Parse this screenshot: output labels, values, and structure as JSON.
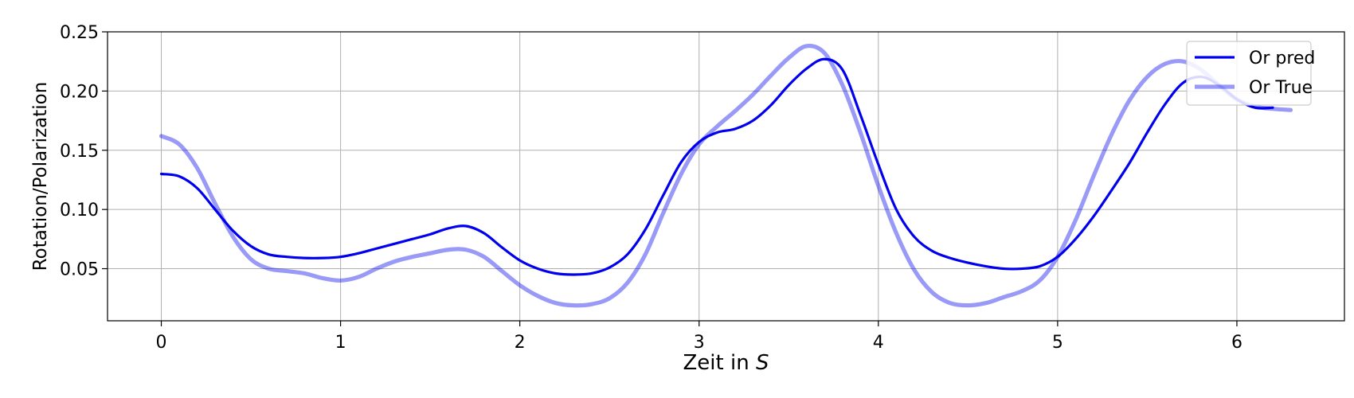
{
  "chart_data": {
    "type": "line",
    "xlabel": "Zeit in S",
    "xlabel_main": "Zeit in ",
    "xlabel_italic": "S",
    "ylabel": "Rotation/Polarization",
    "xlim": [
      -0.3,
      6.6
    ],
    "ylim": [
      0.006,
      0.25
    ],
    "xticks": [
      0,
      1,
      2,
      3,
      4,
      5,
      6
    ],
    "xtick_labels": [
      "0",
      "1",
      "2",
      "3",
      "4",
      "5",
      "6"
    ],
    "yticks": [
      0.05,
      0.1,
      0.15,
      0.2,
      0.25
    ],
    "ytick_labels": [
      "0.05",
      "0.10",
      "0.15",
      "0.20",
      "0.25"
    ],
    "grid": true,
    "legend_position": "top-right",
    "series": [
      {
        "name": "Or pred",
        "color": "#0000ee",
        "opacity": 1.0,
        "linewidth": "thin",
        "points": [
          [
            0,
            0.13
          ],
          [
            0.1,
            0.128
          ],
          [
            0.2,
            0.118
          ],
          [
            0.3,
            0.1
          ],
          [
            0.4,
            0.082
          ],
          [
            0.5,
            0.069
          ],
          [
            0.6,
            0.062
          ],
          [
            0.7,
            0.06
          ],
          [
            0.8,
            0.059
          ],
          [
            0.9,
            0.059
          ],
          [
            1.0,
            0.06
          ],
          [
            1.1,
            0.063
          ],
          [
            1.2,
            0.067
          ],
          [
            1.3,
            0.071
          ],
          [
            1.4,
            0.075
          ],
          [
            1.5,
            0.079
          ],
          [
            1.6,
            0.084
          ],
          [
            1.7,
            0.086
          ],
          [
            1.8,
            0.08
          ],
          [
            1.9,
            0.068
          ],
          [
            2.0,
            0.057
          ],
          [
            2.1,
            0.05
          ],
          [
            2.2,
            0.046
          ],
          [
            2.3,
            0.045
          ],
          [
            2.4,
            0.046
          ],
          [
            2.5,
            0.051
          ],
          [
            2.6,
            0.062
          ],
          [
            2.7,
            0.083
          ],
          [
            2.8,
            0.112
          ],
          [
            2.9,
            0.14
          ],
          [
            3.0,
            0.157
          ],
          [
            3.1,
            0.165
          ],
          [
            3.2,
            0.168
          ],
          [
            3.3,
            0.175
          ],
          [
            3.4,
            0.188
          ],
          [
            3.5,
            0.205
          ],
          [
            3.6,
            0.219
          ],
          [
            3.7,
            0.227
          ],
          [
            3.8,
            0.218
          ],
          [
            3.9,
            0.18
          ],
          [
            4.0,
            0.138
          ],
          [
            4.1,
            0.1
          ],
          [
            4.2,
            0.077
          ],
          [
            4.3,
            0.065
          ],
          [
            4.4,
            0.059
          ],
          [
            4.5,
            0.055
          ],
          [
            4.6,
            0.052
          ],
          [
            4.7,
            0.05
          ],
          [
            4.8,
            0.05
          ],
          [
            4.9,
            0.052
          ],
          [
            5.0,
            0.06
          ],
          [
            5.1,
            0.075
          ],
          [
            5.2,
            0.094
          ],
          [
            5.3,
            0.116
          ],
          [
            5.4,
            0.139
          ],
          [
            5.5,
            0.165
          ],
          [
            5.6,
            0.189
          ],
          [
            5.7,
            0.207
          ],
          [
            5.8,
            0.212
          ],
          [
            5.9,
            0.205
          ],
          [
            6.0,
            0.193
          ],
          [
            6.1,
            0.186
          ],
          [
            6.2,
            0.186
          ]
        ]
      },
      {
        "name": "Or True",
        "color": "#0000ee",
        "opacity": 0.4,
        "linewidth": "thick",
        "points": [
          [
            0,
            0.162
          ],
          [
            0.1,
            0.155
          ],
          [
            0.2,
            0.135
          ],
          [
            0.3,
            0.105
          ],
          [
            0.4,
            0.077
          ],
          [
            0.5,
            0.058
          ],
          [
            0.6,
            0.05
          ],
          [
            0.7,
            0.048
          ],
          [
            0.8,
            0.046
          ],
          [
            0.9,
            0.042
          ],
          [
            1.0,
            0.04
          ],
          [
            1.1,
            0.043
          ],
          [
            1.2,
            0.05
          ],
          [
            1.3,
            0.056
          ],
          [
            1.4,
            0.06
          ],
          [
            1.5,
            0.063
          ],
          [
            1.6,
            0.066
          ],
          [
            1.7,
            0.066
          ],
          [
            1.8,
            0.06
          ],
          [
            1.9,
            0.048
          ],
          [
            2.0,
            0.036
          ],
          [
            2.1,
            0.027
          ],
          [
            2.2,
            0.021
          ],
          [
            2.3,
            0.019
          ],
          [
            2.4,
            0.02
          ],
          [
            2.5,
            0.025
          ],
          [
            2.6,
            0.038
          ],
          [
            2.7,
            0.062
          ],
          [
            2.8,
            0.097
          ],
          [
            2.9,
            0.13
          ],
          [
            3.0,
            0.155
          ],
          [
            3.1,
            0.17
          ],
          [
            3.2,
            0.183
          ],
          [
            3.3,
            0.197
          ],
          [
            3.4,
            0.213
          ],
          [
            3.5,
            0.228
          ],
          [
            3.6,
            0.238
          ],
          [
            3.7,
            0.232
          ],
          [
            3.8,
            0.205
          ],
          [
            3.9,
            0.165
          ],
          [
            4.0,
            0.12
          ],
          [
            4.1,
            0.08
          ],
          [
            4.2,
            0.049
          ],
          [
            4.3,
            0.03
          ],
          [
            4.4,
            0.021
          ],
          [
            4.5,
            0.019
          ],
          [
            4.6,
            0.021
          ],
          [
            4.7,
            0.026
          ],
          [
            4.8,
            0.031
          ],
          [
            4.9,
            0.04
          ],
          [
            5.0,
            0.06
          ],
          [
            5.1,
            0.091
          ],
          [
            5.2,
            0.128
          ],
          [
            5.3,
            0.163
          ],
          [
            5.4,
            0.192
          ],
          [
            5.5,
            0.212
          ],
          [
            5.6,
            0.223
          ],
          [
            5.7,
            0.225
          ],
          [
            5.8,
            0.218
          ],
          [
            5.9,
            0.205
          ],
          [
            6.0,
            0.193
          ],
          [
            6.1,
            0.187
          ],
          [
            6.2,
            0.185
          ],
          [
            6.3,
            0.184
          ]
        ]
      }
    ]
  }
}
